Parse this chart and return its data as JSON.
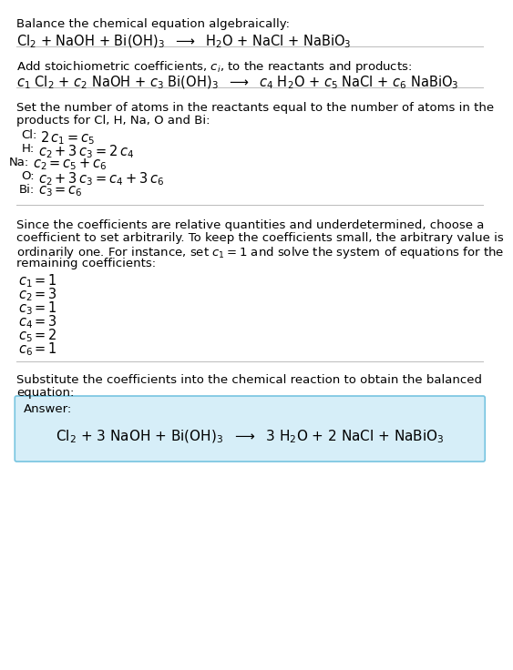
{
  "background_color": "#ffffff",
  "section1_title": "Balance the chemical equation algebraically:",
  "section1_eq": "Cl$_2$ + NaOH + Bi(OH)$_3$  $\\longrightarrow$  H$_2$O + NaCl + NaBiO$_3$",
  "section2_title": "Add stoichiometric coefficients, $c_i$, to the reactants and products:",
  "section2_eq": "$c_1$ Cl$_2$ + $c_2$ NaOH + $c_3$ Bi(OH)$_3$  $\\longrightarrow$  $c_4$ H$_2$O + $c_5$ NaCl + $c_6$ NaBiO$_3$",
  "section3_title_line1": "Set the number of atoms in the reactants equal to the number of atoms in the",
  "section3_title_line2": "products for Cl, H, Na, O and Bi:",
  "atom_eqs": [
    [
      "Cl:",
      "$2\\,c_1 = c_5$"
    ],
    [
      "H:",
      "$c_2 + 3\\,c_3 = 2\\,c_4$"
    ],
    [
      "Na:",
      "$c_2 = c_5 + c_6$"
    ],
    [
      "O:",
      "$c_2 + 3\\,c_3 = c_4 + 3\\,c_6$"
    ],
    [
      "Bi:",
      "$c_3 = c_6$"
    ]
  ],
  "section4_line1": "Since the coefficients are relative quantities and underdetermined, choose a",
  "section4_line2": "coefficient to set arbitrarily. To keep the coefficients small, the arbitrary value is",
  "section4_line3": "ordinarily one. For instance, set $c_1 = 1$ and solve the system of equations for the",
  "section4_line4": "remaining coefficients:",
  "coefficients": [
    "$c_1 = 1$",
    "$c_2 = 3$",
    "$c_3 = 1$",
    "$c_4 = 3$",
    "$c_5 = 2$",
    "$c_6 = 1$"
  ],
  "section5_line1": "Substitute the coefficients into the chemical reaction to obtain the balanced",
  "section5_line2": "equation:",
  "answer_label": "Answer:",
  "answer_eq": "Cl$_2$ + 3 NaOH + Bi(OH)$_3$  $\\longrightarrow$  3 H$_2$O + 2 NaCl + NaBiO$_3$",
  "answer_box_color": "#d6eef8",
  "answer_box_border": "#76c4e0",
  "line_color": "#bbbbbb",
  "font_size_body": 9.5,
  "font_size_eq": 10.5
}
